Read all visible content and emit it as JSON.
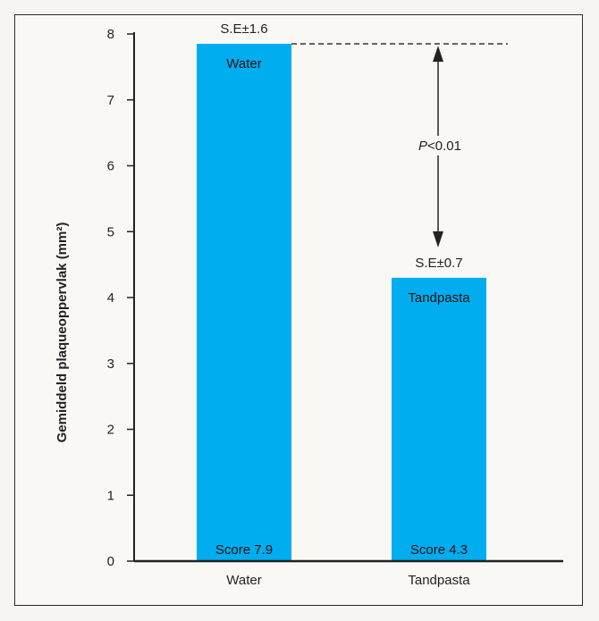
{
  "chart_data": {
    "type": "bar",
    "ylabel": "Gemiddeld plaqueoppervlak (mm²)",
    "xlabel": "",
    "ylim": [
      0,
      8
    ],
    "yticks": [
      0,
      1,
      2,
      3,
      4,
      5,
      6,
      7,
      8
    ],
    "categories": [
      "Water",
      "Tandpasta"
    ],
    "values": [
      7.85,
      4.3
    ],
    "bar_labels": [
      "Water",
      "Tandpasta"
    ],
    "score_labels": [
      "Score 7.9",
      "Score 4.3"
    ],
    "se_labels": [
      "S.E±1.6",
      "S.E±0.7"
    ],
    "significance": {
      "label": "P<0.01",
      "p_prefix": "P",
      "p_rest": "<0.01"
    },
    "bar_color": "#00adef",
    "grid": false,
    "legend": "none"
  }
}
